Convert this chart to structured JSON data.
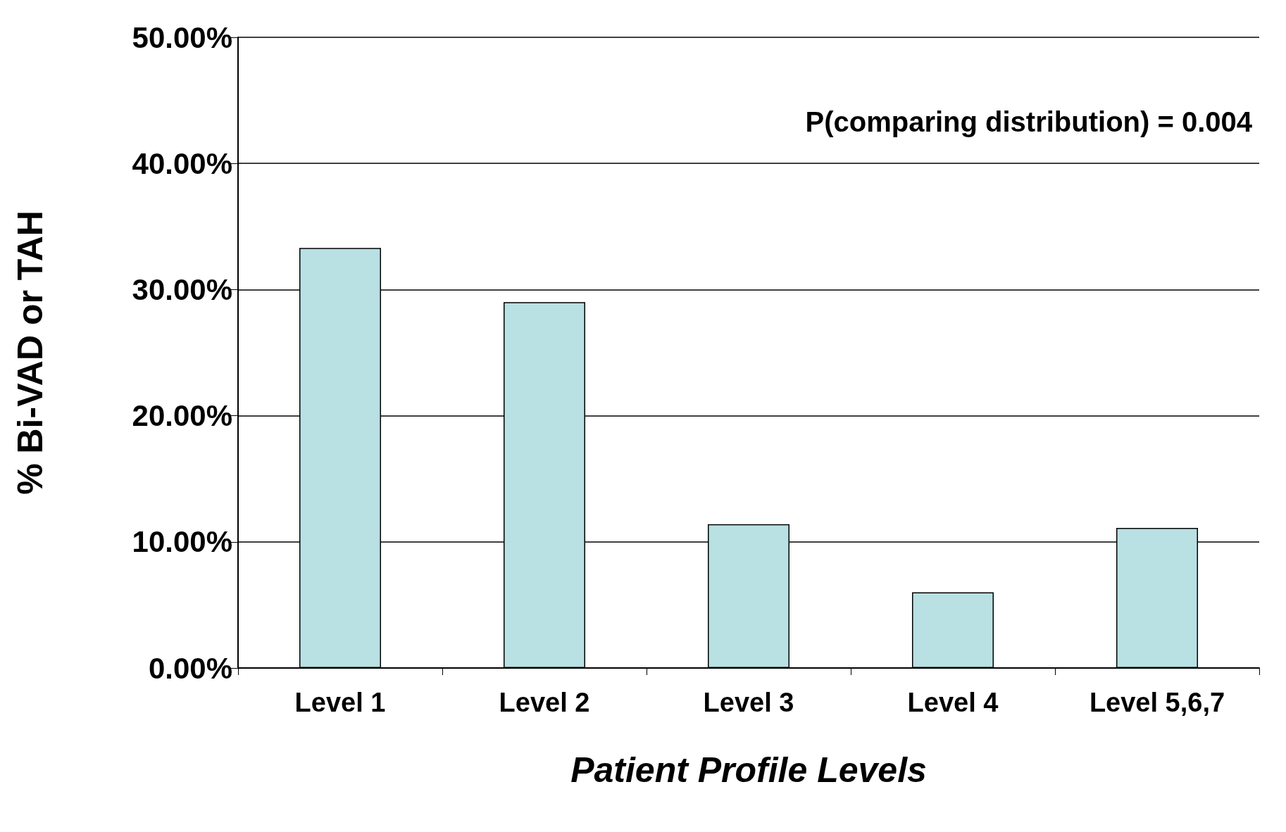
{
  "chart_data": {
    "type": "bar",
    "categories": [
      "Level 1",
      "Level 2",
      "Level 3",
      "Level 4",
      "Level 5,6,7"
    ],
    "values": [
      33.3,
      29.0,
      11.4,
      6.0,
      11.1
    ],
    "color": "#b9e0e3",
    "ylim": [
      0,
      50
    ],
    "yticks": [
      {
        "value": 0,
        "label": "0.00%"
      },
      {
        "value": 10,
        "label": "10.00%"
      },
      {
        "value": 20,
        "label": "20.00%"
      },
      {
        "value": 30,
        "label": "30.00%"
      },
      {
        "value": 40,
        "label": "40.00%"
      },
      {
        "value": 50,
        "label": "50.00%"
      }
    ],
    "ylabel": "% Bi-VAD or TAH",
    "xlabel": "Patient Profile Levels",
    "annotations": [
      "P(comparing distribution) = 0.004"
    ],
    "grid": "y"
  }
}
